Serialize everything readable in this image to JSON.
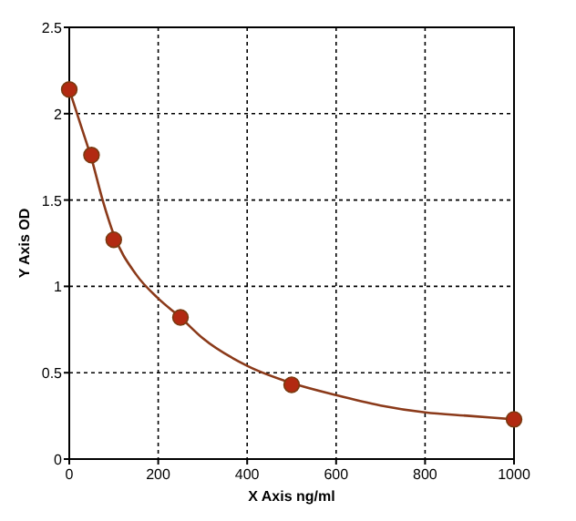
{
  "chart_data": {
    "type": "scatter",
    "xlabel": "X Axis ng/ml",
    "ylabel": "Y Axis OD",
    "xlim": [
      0,
      1000
    ],
    "xticks": [
      0,
      200,
      400,
      600,
      800,
      1000
    ],
    "ylim": [
      0,
      2.5
    ],
    "yticks": [
      0,
      0.5,
      1,
      1.5,
      2,
      2.5
    ],
    "grid": true,
    "marker": "circle",
    "series": [
      {
        "type": "line",
        "color": "#8b3a1a",
        "marker": "none",
        "x": [
          0,
          25,
          50,
          75,
          100,
          150,
          200,
          250,
          300,
          400,
          500,
          600,
          700,
          800,
          900,
          1000
        ],
        "values": [
          2.14,
          1.94,
          1.74,
          1.5,
          1.3,
          1.07,
          0.93,
          0.82,
          0.7,
          0.54,
          0.44,
          0.37,
          0.31,
          0.27,
          0.25,
          0.23
        ]
      },
      {
        "color": "#b22a12",
        "x": [
          0,
          50,
          100,
          250,
          500,
          1000
        ],
        "values": [
          2.14,
          1.76,
          1.27,
          0.82,
          0.43,
          0.23
        ]
      }
    ]
  }
}
